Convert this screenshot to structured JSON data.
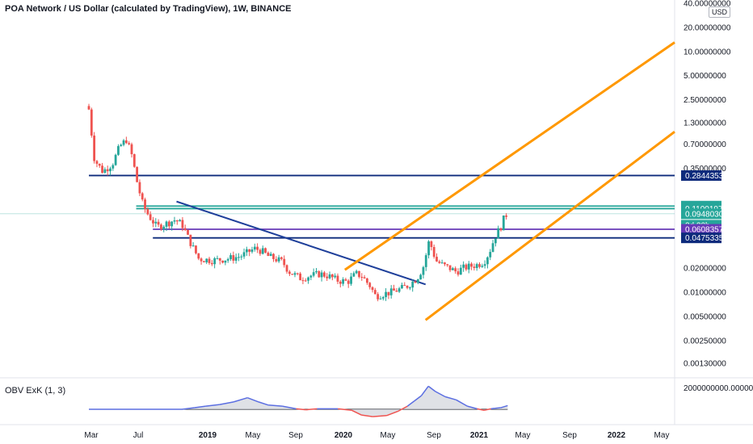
{
  "header": {
    "title": "POA Network / US Dollar (calculated by TradingView), 1W, BINANCE",
    "currency_button": "USD"
  },
  "oscillator": {
    "title": "OBV ExK (1, 3)",
    "axis_label": "2000000000.00000000"
  },
  "colors": {
    "up": "#26a69a",
    "down": "#ef5350",
    "orange": "#ff9800",
    "navy": "#0d2b7c",
    "blue_trend": "#1e3f9a",
    "teal": "#26a69a",
    "purple": "#673ab7",
    "obv_line": "#5b6ee1",
    "obv_fill": "#d1d4dc"
  },
  "chart_data": [
    {
      "type": "candlestick",
      "title": "POA Network / US Dollar (calculated by TradingView), 1W, BINANCE",
      "x_axis": {
        "ticks": [
          "Mar",
          "Jul",
          "2019",
          "May",
          "Sep",
          "2020",
          "May",
          "Sep",
          "2021",
          "May",
          "Sep",
          "2022",
          "May"
        ]
      },
      "y_axis": {
        "scale": "log",
        "ticks": [
          "40.00000000",
          "20.00000000",
          "10.00000000",
          "5.00000000",
          "2.50000000",
          "1.30000000",
          "0.70000000",
          "0.35000000",
          "0.02000000",
          "0.01000000",
          "0.00500000",
          "0.00250000",
          "0.00130000"
        ]
      },
      "price_labels": [
        {
          "value": "0.28443531",
          "color": "#0d2b7c"
        },
        {
          "value": "0.11844103",
          "color": "#26a69a"
        },
        {
          "value": "0.11001979",
          "color": "#26a69a"
        },
        {
          "value": "0.09480307",
          "color": "#26a69a"
        },
        {
          "value": "2d 20h",
          "color": "#26a69a"
        },
        {
          "value": "0.06083577",
          "color": "#673ab7"
        },
        {
          "value": "0.04753359",
          "color": "#0d2b7c"
        }
      ],
      "price_path": [
        [
          2018.16,
          1.9
        ],
        [
          2018.2,
          0.45
        ],
        [
          2018.26,
          0.32
        ],
        [
          2018.33,
          0.4
        ],
        [
          2018.38,
          0.65
        ],
        [
          2018.43,
          0.8
        ],
        [
          2018.47,
          0.5
        ],
        [
          2018.51,
          0.22
        ],
        [
          2018.55,
          0.12
        ],
        [
          2018.59,
          0.09
        ],
        [
          2018.65,
          0.065
        ],
        [
          2018.7,
          0.07
        ],
        [
          2018.78,
          0.08
        ],
        [
          2018.83,
          0.07
        ],
        [
          2018.88,
          0.045
        ],
        [
          2018.95,
          0.026
        ],
        [
          2019.05,
          0.025
        ],
        [
          2019.15,
          0.026
        ],
        [
          2019.25,
          0.028
        ],
        [
          2019.35,
          0.035
        ],
        [
          2019.4,
          0.033
        ],
        [
          2019.45,
          0.028
        ],
        [
          2019.5,
          0.026
        ],
        [
          2019.55,
          0.024
        ],
        [
          2019.6,
          0.018
        ],
        [
          2019.68,
          0.015
        ],
        [
          2019.75,
          0.016
        ],
        [
          2019.82,
          0.017
        ],
        [
          2019.88,
          0.016
        ],
        [
          2019.95,
          0.014
        ],
        [
          2020.02,
          0.0135
        ],
        [
          2020.08,
          0.017
        ],
        [
          2020.12,
          0.016
        ],
        [
          2020.18,
          0.012
        ],
        [
          2020.22,
          0.009
        ],
        [
          2020.27,
          0.0095
        ],
        [
          2020.33,
          0.01
        ],
        [
          2020.4,
          0.011
        ],
        [
          2020.45,
          0.012
        ],
        [
          2020.5,
          0.014
        ],
        [
          2020.53,
          0.016
        ],
        [
          2020.57,
          0.022
        ],
        [
          2020.6,
          0.042
        ],
        [
          2020.63,
          0.035
        ],
        [
          2020.65,
          0.025
        ],
        [
          2020.7,
          0.022
        ],
        [
          2020.75,
          0.02
        ],
        [
          2020.8,
          0.018
        ],
        [
          2020.85,
          0.02
        ],
        [
          2020.9,
          0.021
        ],
        [
          2020.95,
          0.022
        ],
        [
          2021.0,
          0.024
        ],
        [
          2021.04,
          0.032
        ],
        [
          2021.08,
          0.05
        ],
        [
          2021.12,
          0.065
        ],
        [
          2021.15,
          0.09
        ],
        [
          2021.17,
          0.0948
        ]
      ],
      "horizontal_levels": [
        {
          "x_start": 2018.16,
          "value": 0.28443531,
          "color": "#0d2b7c"
        },
        {
          "x_start": 2018.5,
          "value": 0.11001979,
          "color": "#26a69a"
        },
        {
          "x_start": 2018.5,
          "value": 0.11844103,
          "color": "#26a69a"
        },
        {
          "x_start": 2018.62,
          "value": 0.06083577,
          "color": "#673ab7"
        },
        {
          "x_start": 2018.62,
          "value": 0.04753359,
          "color": "#0d2b7c"
        }
      ],
      "trendlines": [
        {
          "points": [
            [
              2018.79,
              0.135
            ],
            [
              2020.58,
              0.0125
            ]
          ],
          "color": "#1e3f9a"
        },
        {
          "points": [
            [
              2020.0,
              0.019
            ],
            [
              2022.37,
              13.0
            ]
          ],
          "color": "#ff9800"
        },
        {
          "points": [
            [
              2020.58,
              0.0045
            ],
            [
              2022.37,
              1.0
            ]
          ],
          "color": "#ff9800"
        }
      ]
    },
    {
      "type": "area",
      "title": "OBV ExK (1, 3)",
      "y_axis": {
        "ticks": [
          "2000000000.00000000"
        ]
      },
      "series": [
        {
          "values": [
            [
              2018.16,
              0
            ],
            [
              2018.83,
              0
            ],
            [
              2018.92,
              0.15
            ],
            [
              2019.0,
              0.3
            ],
            [
              2019.1,
              0.45
            ],
            [
              2019.2,
              0.7
            ],
            [
              2019.3,
              1.1
            ],
            [
              2019.38,
              0.7
            ],
            [
              2019.45,
              0.4
            ],
            [
              2019.55,
              0.3
            ],
            [
              2019.65,
              0.05
            ],
            [
              2019.72,
              -0.05
            ],
            [
              2019.8,
              0.05
            ],
            [
              2019.95,
              0.05
            ],
            [
              2020.05,
              -0.1
            ],
            [
              2020.12,
              -0.55
            ],
            [
              2020.2,
              -0.7
            ],
            [
              2020.3,
              -0.6
            ],
            [
              2020.38,
              -0.2
            ],
            [
              2020.45,
              0.3
            ],
            [
              2020.5,
              0.8
            ],
            [
              2020.55,
              1.3
            ],
            [
              2020.6,
              2.2
            ],
            [
              2020.65,
              1.7
            ],
            [
              2020.72,
              1.2
            ],
            [
              2020.8,
              0.9
            ],
            [
              2020.88,
              0.3
            ],
            [
              2020.95,
              0.05
            ],
            [
              2021.0,
              -0.1
            ],
            [
              2021.05,
              0.05
            ],
            [
              2021.08,
              0.1
            ],
            [
              2021.12,
              0.15
            ],
            [
              2021.17,
              0.35
            ]
          ]
        }
      ]
    }
  ]
}
